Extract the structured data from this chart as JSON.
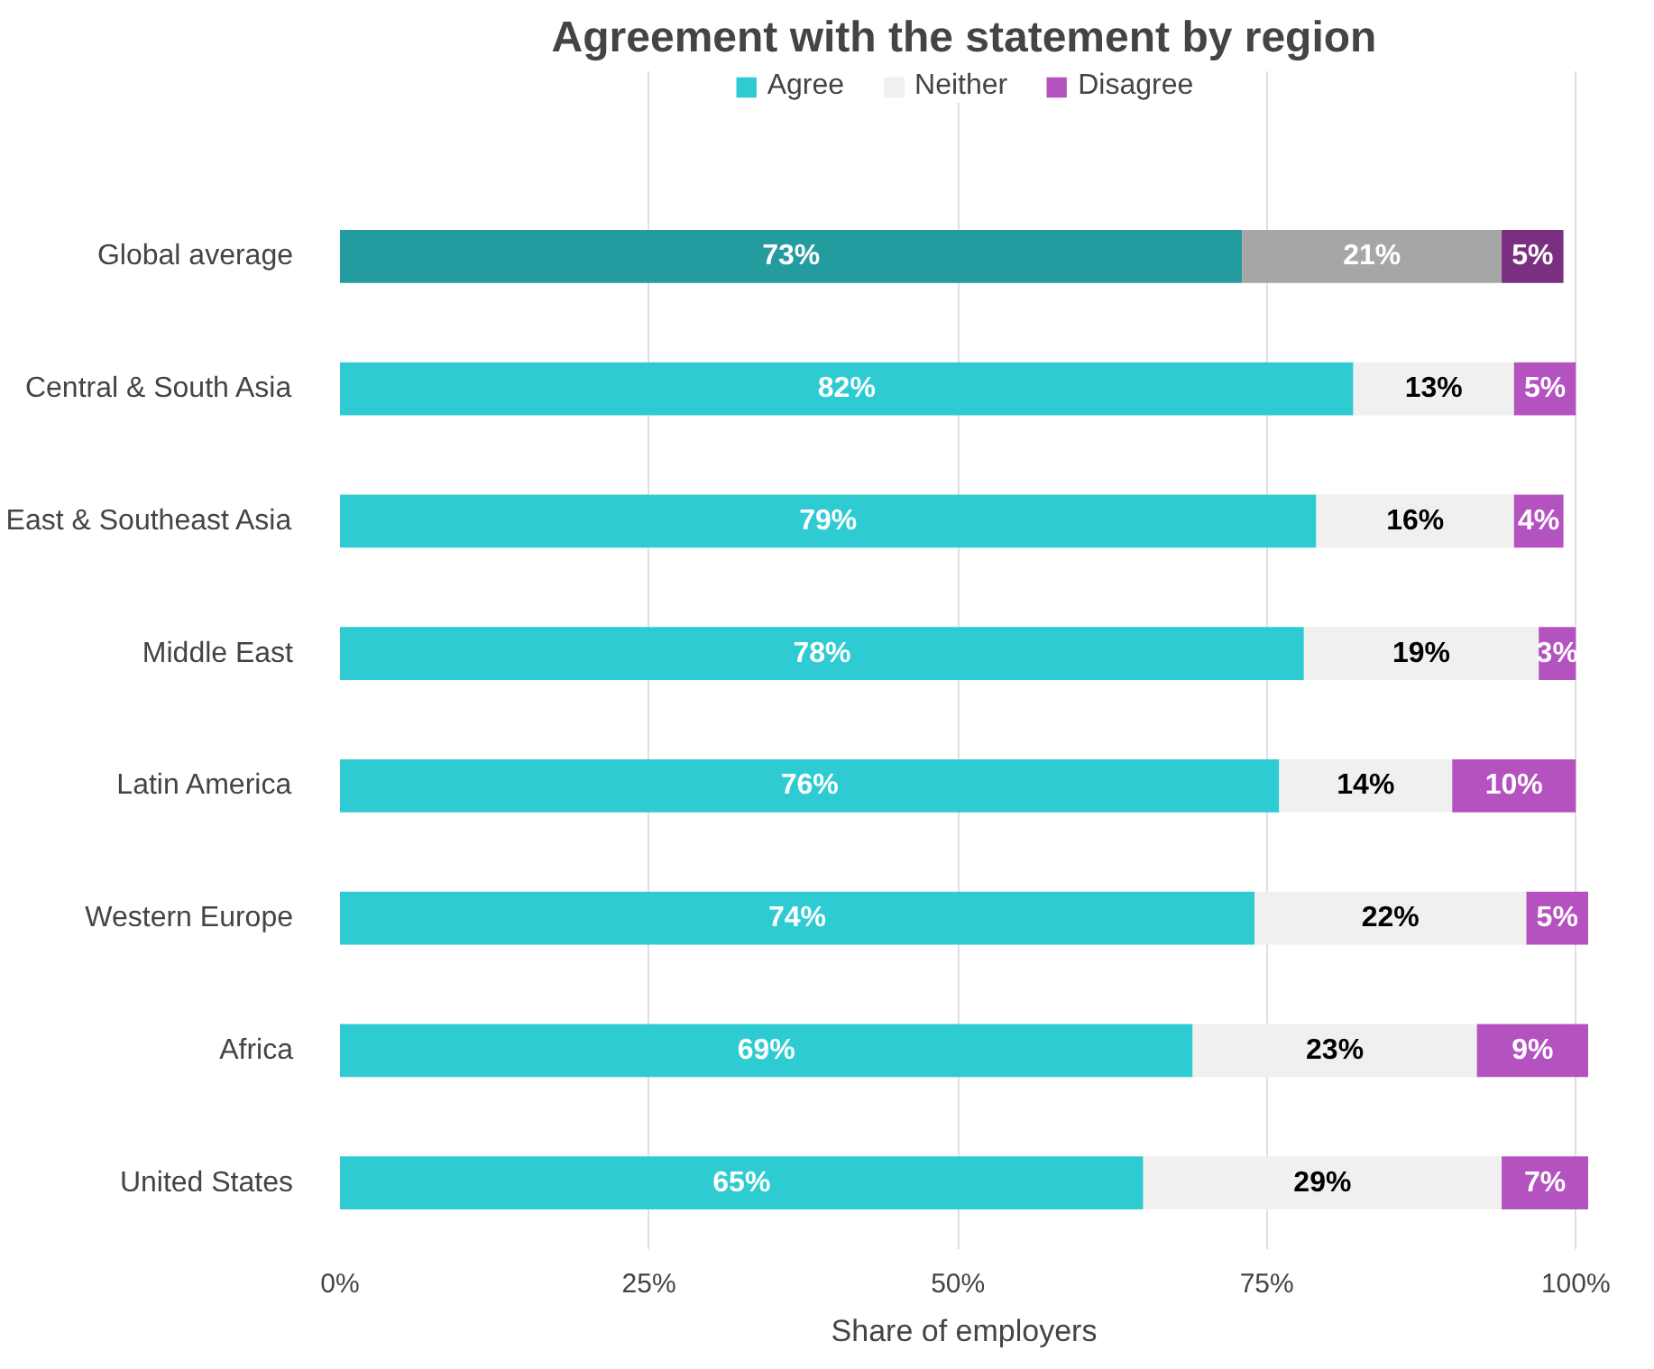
{
  "chart_data": {
    "type": "bar",
    "orientation": "horizontal",
    "stacked": true,
    "title": "Agreement with the statement by region",
    "xlabel": "Share of employers",
    "categories": [
      "Global average",
      "Central & South Asia",
      "East & Southeast Asia",
      "Middle East",
      "Latin America",
      "Western Europe",
      "Africa",
      "United States"
    ],
    "series": [
      {
        "name": "Agree",
        "color": "#2ecbd2",
        "colors": [
          "#239b9f",
          "#2ecbd2",
          "#2ecbd2",
          "#2ecbd2",
          "#2ecbd2",
          "#2ecbd2",
          "#2ecbd2",
          "#2ecbd2"
        ],
        "values": [
          73,
          82,
          79,
          78,
          76,
          74,
          69,
          65
        ],
        "value_labels": [
          "73%",
          "82%",
          "79%",
          "78%",
          "76%",
          "74%",
          "69%",
          "65%"
        ]
      },
      {
        "name": "Neither",
        "color": "#f0f0f0",
        "colors": [
          "#a6a6a6",
          "#f0f0f0",
          "#f0f0f0",
          "#f0f0f0",
          "#f0f0f0",
          "#f0f0f0",
          "#f0f0f0",
          "#f0f0f0"
        ],
        "values": [
          21,
          13,
          16,
          19,
          14,
          22,
          23,
          29
        ],
        "value_labels": [
          "21%",
          "13%",
          "16%",
          "19%",
          "14%",
          "22%",
          "23%",
          "29%"
        ]
      },
      {
        "name": "Disagree",
        "color": "#b452c0",
        "colors": [
          "#7b2f80",
          "#b452c0",
          "#b452c0",
          "#b452c0",
          "#b452c0",
          "#b452c0",
          "#b452c0",
          "#b452c0"
        ],
        "values": [
          5,
          5,
          4,
          3,
          10,
          5,
          9,
          7
        ],
        "value_labels": [
          "5%",
          "5%",
          "4%",
          "3%",
          "10%",
          "5%",
          "9%",
          "7%"
        ]
      }
    ],
    "xlim": [
      0,
      101
    ],
    "xticks": [
      {
        "value": 0,
        "label": "0%"
      },
      {
        "value": 25,
        "label": "25%"
      },
      {
        "value": 50,
        "label": "50%"
      },
      {
        "value": 75,
        "label": "75%"
      },
      {
        "value": 100,
        "label": "100%"
      }
    ],
    "grid": "x",
    "legend": "top"
  }
}
